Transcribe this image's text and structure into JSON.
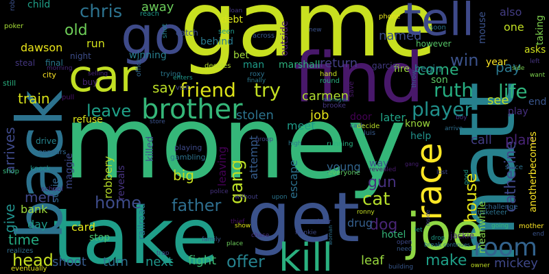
{
  "words": [
    {
      "text": "money",
      "color": "#35b779"
    },
    {
      "text": "game",
      "color": "#c8e020"
    },
    {
      "text": "take",
      "color": "#1f9e89"
    },
    {
      "text": "find",
      "color": "#48186a"
    },
    {
      "text": "back",
      "color": "#2c728e"
    },
    {
      "text": "matt",
      "color": "#27818e"
    },
    {
      "text": "get",
      "color": "#3b528b"
    },
    {
      "text": "joe",
      "color": "#8fd744"
    },
    {
      "text": "go",
      "color": "#3e4a89"
    },
    {
      "text": "tell",
      "color": "#3e4989"
    },
    {
      "text": "car",
      "color": "#c2df23"
    },
    {
      "text": "race",
      "color": "#fde725"
    },
    {
      "text": "kill",
      "color": "#2ab07f"
    },
    {
      "text": "brother",
      "color": "#35b779"
    },
    {
      "text": "room",
      "color": "#33638d"
    },
    {
      "text": "friend",
      "color": "#dde318"
    },
    {
      "text": "try",
      "color": "#c2df23"
    },
    {
      "text": "player",
      "color": "#21918c"
    },
    {
      "text": "ruth",
      "color": "#26ad81"
    },
    {
      "text": "life",
      "color": "#2fb47c"
    },
    {
      "text": "chris",
      "color": "#2c728e"
    },
    {
      "text": "house",
      "color": "#e5e419"
    },
    {
      "text": "father",
      "color": "#2e6e8e"
    },
    {
      "text": "offer",
      "color": "#26828e"
    },
    {
      "text": "gang",
      "color": "#bddf26"
    },
    {
      "text": "win",
      "color": "#3b528b"
    },
    {
      "text": "leave",
      "color": "#1fa188"
    },
    {
      "text": "home",
      "color": "#3e4c8a"
    },
    {
      "text": "come",
      "color": "#29af7f"
    },
    {
      "text": "catherine",
      "color": "#3f4889"
    },
    {
      "text": "cat",
      "color": "#b5de2b"
    },
    {
      "text": "gun",
      "color": "#46307e"
    },
    {
      "text": "make",
      "color": "#1fa088"
    },
    {
      "text": "dog",
      "color": "#482575"
    },
    {
      "text": "old",
      "color": "#6ece58"
    },
    {
      "text": "say",
      "color": "#bddf26"
    },
    {
      "text": "arrives",
      "color": "#3e4989"
    },
    {
      "text": "give",
      "color": "#21918c"
    },
    {
      "text": "time",
      "color": "#25ab82"
    },
    {
      "text": "head",
      "color": "#c5e021"
    },
    {
      "text": "train",
      "color": "#d8e219"
    },
    {
      "text": "men",
      "color": "#3f4788"
    },
    {
      "text": "big",
      "color": "#c8e020"
    },
    {
      "text": "stolen",
      "color": "#2c738e"
    },
    {
      "text": "job",
      "color": "#e2e418"
    },
    {
      "text": "carmen",
      "color": "#b0dd2f"
    },
    {
      "text": "meet",
      "color": "#1e9c89"
    },
    {
      "text": "pay",
      "color": "#2a778e"
    },
    {
      "text": "plan",
      "color": "#482475"
    },
    {
      "text": "call",
      "color": "#433e85"
    },
    {
      "text": "see",
      "color": "#c0df25"
    },
    {
      "text": "named",
      "color": "#3d4e8a"
    },
    {
      "text": "return",
      "color": "#433e85"
    },
    {
      "text": "drug",
      "color": "#355f8d"
    },
    {
      "text": "leaf",
      "color": "#98d83e"
    },
    {
      "text": "fight",
      "color": "#3dbc74"
    },
    {
      "text": "next",
      "color": "#1f978b"
    },
    {
      "text": "turn",
      "color": "#2d708e"
    },
    {
      "text": "shoot",
      "color": "#375b8d"
    },
    {
      "text": "mickey",
      "color": "#3f4889"
    },
    {
      "text": "bank",
      "color": "#9dd93b"
    },
    {
      "text": "dawson",
      "color": "#eae51a"
    },
    {
      "text": "run",
      "color": "#d2e21b"
    },
    {
      "text": "away",
      "color": "#6ccd5a"
    },
    {
      "text": "later",
      "color": "#20a386"
    },
    {
      "text": "young",
      "color": "#32658e"
    },
    {
      "text": "killed",
      "color": "#3d4e8a"
    },
    {
      "text": "robbery",
      "color": "#b8de29"
    },
    {
      "text": "card",
      "color": "#e2e418"
    },
    {
      "text": "stop",
      "color": "#4ac16d"
    },
    {
      "text": "day",
      "color": "#1e9b8a"
    },
    {
      "text": "leaving",
      "color": "#440154"
    },
    {
      "text": "escape",
      "color": "#2c718e"
    },
    {
      "text": "attempt",
      "color": "#365c8d"
    },
    {
      "text": "hotel",
      "color": "#35b779"
    },
    {
      "text": "door",
      "color": "#440154"
    },
    {
      "text": "know",
      "color": "#9bd93c"
    },
    {
      "text": "help",
      "color": "#20928c"
    },
    {
      "text": "way",
      "color": "#3a548c"
    },
    {
      "text": "meanwhile",
      "color": "#86d549"
    },
    {
      "text": "anotherbecomes",
      "color": "#fde725"
    },
    {
      "text": "son",
      "color": "#5ac864"
    },
    {
      "text": "year",
      "color": "#fde725"
    },
    {
      "text": "fire",
      "color": "#9bd93c"
    },
    {
      "text": "begin",
      "color": "#25848e"
    },
    {
      "text": "asks",
      "color": "#d0e11c"
    },
    {
      "text": "also",
      "color": "#433d84"
    },
    {
      "text": "one",
      "color": "#c2df23"
    },
    {
      "text": "winning",
      "color": "#277f8e"
    },
    {
      "text": "behind",
      "color": "#29798e"
    },
    {
      "text": "bet",
      "color": "#a0da39"
    },
    {
      "text": "man",
      "color": "#1e9c89"
    },
    {
      "text": "debt",
      "color": "#dae319"
    },
    {
      "text": "night",
      "color": "#3d4d8a"
    },
    {
      "text": "child",
      "color": "#1fa088"
    },
    {
      "text": "mouse",
      "color": "#3b528b"
    },
    {
      "text": "taking",
      "color": "#7fd34e"
    },
    {
      "text": "however",
      "color": "#56c667"
    },
    {
      "text": "end",
      "color": "#39568c"
    },
    {
      "text": "play",
      "color": "#462f7e"
    },
    {
      "text": "reveals",
      "color": "#46337f"
    },
    {
      "text": "railroad",
      "color": "#2b748e"
    },
    {
      "text": "refuse",
      "color": "#dae319"
    },
    {
      "text": "susie",
      "color": "#31668e"
    },
    {
      "text": "maggie",
      "color": "#3e4989"
    },
    {
      "text": "outside",
      "color": "#481c6e"
    },
    {
      "text": "marshall",
      "color": "#2db27d"
    },
    {
      "text": "jackie",
      "color": "#482576"
    },
    {
      "text": "garcia",
      "color": "#443b84"
    },
    {
      "text": "playing",
      "color": "#3e4a89"
    },
    {
      "text": "gambling",
      "color": "#2c738e"
    },
    {
      "text": "drive",
      "color": "#25848e"
    },
    {
      "text": "appears",
      "color": "#31688e"
    },
    {
      "text": "final",
      "color": "#2a788e"
    },
    {
      "text": "city",
      "color": "#fde725"
    },
    {
      "text": "morning",
      "color": "#482878"
    },
    {
      "text": "steal",
      "color": "#453781"
    },
    {
      "text": "still",
      "color": "#2ab07f"
    },
    {
      "text": "poker",
      "color": "#a5db36"
    },
    {
      "text": "shop",
      "color": "#35b779"
    },
    {
      "text": "knock",
      "color": "#1f958b"
    },
    {
      "text": "school",
      "color": "#46307e"
    },
    {
      "text": "realizes",
      "color": "#2e6d8e"
    },
    {
      "text": "eventually",
      "color": "#e5e419"
    },
    {
      "text": "catch",
      "color": "#3b528b"
    },
    {
      "text": "buy",
      "color": "#482475"
    },
    {
      "text": "selling",
      "color": "#482878"
    },
    {
      "text": "office",
      "color": "#31688e"
    },
    {
      "text": "pull",
      "color": "#481467"
    },
    {
      "text": "reach",
      "color": "#1f998a"
    },
    {
      "text": "shot",
      "color": "#26828e"
    },
    {
      "text": "trying",
      "color": "#2a788e"
    },
    {
      "text": "visit",
      "color": "#3e4989"
    },
    {
      "text": "enters",
      "color": "#1f988b"
    },
    {
      "text": "decides",
      "color": "#b5de2b"
    },
    {
      "text": "roxy",
      "color": "#2c718e"
    },
    {
      "text": "finally",
      "color": "#2a788e"
    },
    {
      "text": "seen",
      "color": "#1f9a8a"
    },
    {
      "text": "across",
      "color": "#38588c"
    },
    {
      "text": "loan",
      "color": "#453882"
    },
    {
      "text": "new",
      "color": "#3b528b"
    },
    {
      "text": "phone",
      "color": "#e7e419"
    },
    {
      "text": "soon",
      "color": "#2b758e"
    },
    {
      "text": "hand",
      "color": "#c8e020"
    },
    {
      "text": "round",
      "color": "#29af7f"
    },
    {
      "text": "save",
      "color": "#48186a"
    },
    {
      "text": "throw",
      "color": "#355e8d"
    },
    {
      "text": "side",
      "color": "#7ad151"
    },
    {
      "text": "left",
      "color": "#463480"
    },
    {
      "text": "want",
      "color": "#7fd34e"
    },
    {
      "text": "brooke",
      "color": "#453781"
    },
    {
      "text": "manages",
      "color": "#2a788e"
    },
    {
      "text": "cash",
      "color": "#38598c"
    },
    {
      "text": "decide",
      "color": "#bade28"
    },
    {
      "text": "luis",
      "color": "#375a8c"
    },
    {
      "text": "running",
      "color": "#29af7f"
    },
    {
      "text": "high",
      "color": "#2a788e"
    },
    {
      "text": "everyone",
      "color": "#5ec962"
    },
    {
      "text": "revealed",
      "color": "#48196b"
    },
    {
      "text": "lost",
      "color": "#3e4989"
    },
    {
      "text": "gang",
      "color": "#461e71"
    },
    {
      "text": "boy",
      "color": "#46307e"
    },
    {
      "text": "arrive",
      "color": "#2e6f8e"
    },
    {
      "text": "since",
      "color": "#2c728e"
    },
    {
      "text": "good",
      "color": "#1e9c89"
    },
    {
      "text": "challenge",
      "color": "#31688e"
    },
    {
      "text": "musketeer",
      "color": "#2c728e"
    },
    {
      "text": "mother",
      "color": "#fde725"
    },
    {
      "text": "going",
      "color": "#35b779"
    },
    {
      "text": "owner",
      "color": "#c2df23"
    },
    {
      "text": "building",
      "color": "#38588c"
    },
    {
      "text": "need",
      "color": "#38598c"
    },
    {
      "text": "open",
      "color": "#3e4989"
    },
    {
      "text": "drop",
      "color": "#1f9e89"
    },
    {
      "text": "break",
      "color": "#29798e"
    },
    {
      "text": "continues",
      "color": "#2d718e"
    },
    {
      "text": "let",
      "color": "#1e9b8a"
    },
    {
      "text": "inside",
      "color": "#3f4788"
    },
    {
      "text": "ronny",
      "color": "#c5e021"
    },
    {
      "text": "sister",
      "color": "#3e4a89"
    },
    {
      "text": "woman",
      "color": "#2c728e"
    },
    {
      "text": "frankie",
      "color": "#3e4989"
    },
    {
      "text": "upon",
      "color": "#2b758e"
    },
    {
      "text": "without",
      "color": "#423f85"
    },
    {
      "text": "police",
      "color": "#46327e"
    },
    {
      "text": "thief",
      "color": "#471063"
    },
    {
      "text": "chase",
      "color": "#46307e"
    },
    {
      "text": "show",
      "color": "#dde318"
    },
    {
      "text": "place",
      "color": "#6ccd5a"
    },
    {
      "text": "family",
      "color": "#38588c"
    },
    {
      "text": "trap",
      "color": "#3e4989"
    },
    {
      "text": "store",
      "color": "#3b528b"
    },
    {
      "text": "group",
      "color": "#3e4a89"
    },
    {
      "text": "rob",
      "color": "#3b528b"
    },
    {
      "text": "end",
      "color": "#3a548c"
    }
  ]
}
